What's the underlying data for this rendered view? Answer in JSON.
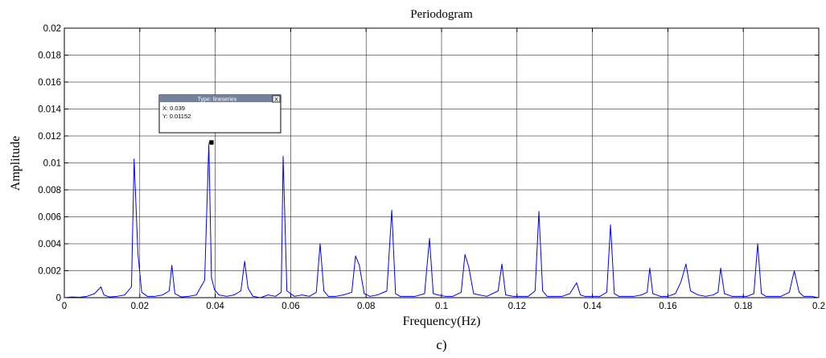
{
  "chart_data": {
    "type": "line",
    "title": "Periodogram",
    "xlabel": "Frequency(Hz)",
    "ylabel": "Amplitude",
    "xlim": [
      0,
      0.2
    ],
    "ylim": [
      0,
      0.02
    ],
    "xticks": [
      0,
      0.02,
      0.04,
      0.06,
      0.08,
      0.1,
      0.12,
      0.14,
      0.16,
      0.18,
      0.2
    ],
    "xtick_labels": [
      "0",
      "0.02",
      "0.04",
      "0.06",
      "0.08",
      "0.1",
      "0.12",
      "0.14",
      "0.16",
      "0.18",
      "0.2"
    ],
    "yticks": [
      0,
      0.002,
      0.004,
      0.006,
      0.008,
      0.01,
      0.012,
      0.014,
      0.016,
      0.018,
      0.02
    ],
    "ytick_labels": [
      "0",
      "0.002",
      "0.004",
      "0.006",
      "0.008",
      "0.01",
      "0.012",
      "0.014",
      "0.016",
      "0.018",
      "0.02"
    ],
    "grid": true,
    "line_color": "#0000ff",
    "series": [
      {
        "x": [
          0,
          0.002,
          0.004,
          0.006,
          0.008,
          0.0097,
          0.0105,
          0.012,
          0.014,
          0.016,
          0.0178,
          0.0185,
          0.0195,
          0.0205,
          0.022,
          0.024,
          0.026,
          0.0278,
          0.0285,
          0.0293,
          0.031,
          0.033,
          0.035,
          0.0372,
          0.0383,
          0.039,
          0.0398,
          0.041,
          0.043,
          0.045,
          0.0468,
          0.0478,
          0.0487,
          0.05,
          0.052,
          0.054,
          0.056,
          0.0575,
          0.058,
          0.059,
          0.061,
          0.063,
          0.065,
          0.0668,
          0.0678,
          0.0688,
          0.07,
          0.072,
          0.074,
          0.0762,
          0.0772,
          0.0782,
          0.0795,
          0.081,
          0.083,
          0.0855,
          0.0868,
          0.0878,
          0.089,
          0.091,
          0.093,
          0.0955,
          0.0968,
          0.0978,
          0.099,
          0.101,
          0.103,
          0.1052,
          0.1062,
          0.1072,
          0.1085,
          0.11,
          0.112,
          0.115,
          0.116,
          0.117,
          0.119,
          0.121,
          0.123,
          0.1248,
          0.1258,
          0.1268,
          0.128,
          0.13,
          0.132,
          0.134,
          0.1358,
          0.1368,
          0.138,
          0.14,
          0.142,
          0.1438,
          0.1448,
          0.1458,
          0.147,
          0.149,
          0.151,
          0.153,
          0.1545,
          0.1552,
          0.156,
          0.158,
          0.16,
          0.162,
          0.1635,
          0.1648,
          0.166,
          0.168,
          0.17,
          0.172,
          0.1733,
          0.174,
          0.175,
          0.177,
          0.179,
          0.181,
          0.1828,
          0.1838,
          0.1848,
          0.186,
          0.188,
          0.19,
          0.1922,
          0.1935,
          0.1948,
          0.196,
          0.198,
          0.2
        ],
        "y": [
          0,
          5e-05,
          3e-05,
          0.0001,
          0.0003,
          0.0008,
          0.0002,
          5e-05,
          0.0001,
          0.0002,
          0.0008,
          0.0103,
          0.0033,
          0.0004,
          0.0001,
          0.0001,
          0.0002,
          0.0005,
          0.0024,
          0.0003,
          5e-05,
          0.0001,
          0.0002,
          0.0013,
          0.0115,
          0.0015,
          0.0006,
          0.0002,
          0.0001,
          0.0002,
          0.0005,
          0.0027,
          0.0007,
          0.0001,
          0,
          0.0002,
          0.0001,
          0.0004,
          0.0105,
          0.0005,
          0.0001,
          0.0002,
          0.0001,
          0.0004,
          0.004,
          0.0005,
          0.0001,
          0.0001,
          0.0002,
          0.0004,
          0.0031,
          0.0024,
          0.0003,
          0.0001,
          0.0002,
          0.0005,
          0.0065,
          0.0003,
          0.0001,
          0.0001,
          0.0001,
          0.0003,
          0.0044,
          0.0003,
          0.0002,
          0.0001,
          0.0001,
          0.0004,
          0.0032,
          0.0023,
          0.0003,
          0.0002,
          0.0001,
          0.0005,
          0.0025,
          0.0002,
          0.0001,
          0.0001,
          0.0001,
          0.0005,
          0.0064,
          0.0005,
          0.0001,
          0.0001,
          0.0001,
          0.0003,
          0.0011,
          0.0002,
          0.0001,
          0.0001,
          0.0001,
          0.0004,
          0.0054,
          0.0003,
          0.0001,
          0.0001,
          0.0001,
          0.0002,
          0.0004,
          0.0022,
          0.0003,
          0.0001,
          0.0001,
          0.0003,
          0.0012,
          0.0025,
          0.0005,
          0.0002,
          0.0001,
          0.0002,
          0.0004,
          0.0022,
          0.0003,
          0.0001,
          0.0001,
          0.0001,
          0.0003,
          0.004,
          0.0003,
          0.0001,
          0.0001,
          0.0001,
          0.0004,
          0.002,
          0.0004,
          0.0001,
          0.0001,
          0
        ]
      }
    ],
    "datatip": {
      "header": "Type: lineseries",
      "close_label": "X",
      "x_text": "X: 0.039",
      "y_text": "Y: 0.01152",
      "x": 0.039,
      "y": 0.01152
    },
    "caption": "c)"
  }
}
